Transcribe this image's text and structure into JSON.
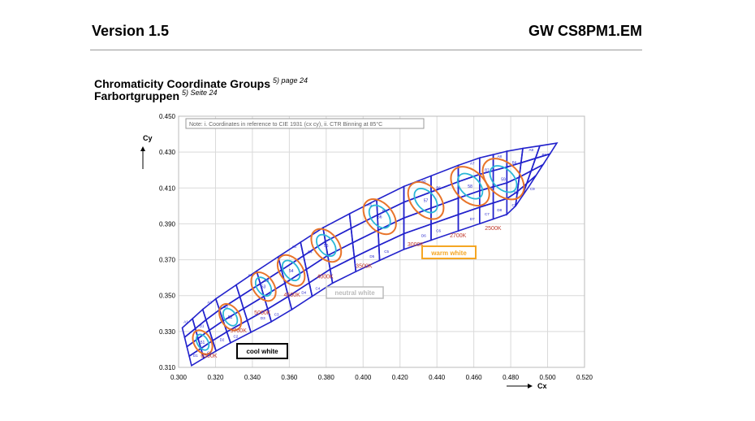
{
  "header": {
    "version": "Version 1.5",
    "part_number": "GW CS8PM1.EM"
  },
  "section": {
    "title_en": "Chromaticity Coordinate Groups",
    "ref_en": "5) page 24",
    "title_de": "Farbortgruppen",
    "ref_de": "5) Seite 24"
  },
  "colors": {
    "grid": "#d9d9d9",
    "bin_border": "#2222cc",
    "ellipse_orange": "#e8742a",
    "ellipse_cyan": "#2ab7d6",
    "cct_label": "#c0392b"
  },
  "chart_data": {
    "type": "scatter",
    "title": "",
    "xlabel": "Cx",
    "ylabel": "Cy",
    "xlim": [
      0.3,
      0.52
    ],
    "ylim": [
      0.31,
      0.45
    ],
    "x_ticks": [
      "0.300",
      "0.320",
      "0.340",
      "0.360",
      "0.380",
      "0.400",
      "0.420",
      "0.440",
      "0.460",
      "0.480",
      "0.500",
      "0.520"
    ],
    "y_ticks": [
      "0.310",
      "0.330",
      "0.350",
      "0.370",
      "0.390",
      "0.410",
      "0.430",
      "0.450"
    ],
    "grid": true,
    "note": "Note: i. Coordinates in reference to CIE 1931 (cx cy), ii. CTR Binning at 85°C",
    "groups": [
      {
        "name": "cool white",
        "position": "bottom-left"
      },
      {
        "name": "neutral white",
        "position": "center"
      },
      {
        "name": "warm white",
        "position": "right"
      }
    ],
    "cct_points": [
      {
        "label": "6500K",
        "x": 0.313,
        "y": 0.324
      },
      {
        "label": "5700K",
        "x": 0.328,
        "y": 0.338
      },
      {
        "label": "5000K",
        "x": 0.346,
        "y": 0.355
      },
      {
        "label": "4500K",
        "x": 0.361,
        "y": 0.364
      },
      {
        "label": "4000K",
        "x": 0.38,
        "y": 0.378
      },
      {
        "label": "3500K",
        "x": 0.409,
        "y": 0.394
      },
      {
        "label": "3000K",
        "x": 0.434,
        "y": 0.403
      },
      {
        "label": "2700K",
        "x": 0.458,
        "y": 0.411
      },
      {
        "label": "2500K",
        "x": 0.476,
        "y": 0.415
      }
    ],
    "cct_label_positions": [
      {
        "label": "6500K",
        "x": 0.312,
        "y": 0.3155
      },
      {
        "label": "5700K",
        "x": 0.328,
        "y": 0.3295
      },
      {
        "label": "5000K",
        "x": 0.341,
        "y": 0.3395
      },
      {
        "label": "4500K",
        "x": 0.357,
        "y": 0.3495
      },
      {
        "label": "4000K",
        "x": 0.375,
        "y": 0.3595
      },
      {
        "label": "3500K",
        "x": 0.396,
        "y": 0.3655
      },
      {
        "label": "3000K",
        "x": 0.424,
        "y": 0.3775
      },
      {
        "label": "2700K",
        "x": 0.447,
        "y": 0.3825
      },
      {
        "label": "2500K",
        "x": 0.466,
        "y": 0.3865
      }
    ],
    "bin_labels": [
      "A1",
      "B1",
      "C1",
      "D1",
      "A2",
      "B2",
      "C2",
      "D2",
      "A3",
      "B3",
      "C3",
      "D3",
      "A4",
      "B4",
      "C4",
      "D4",
      "A5",
      "B5",
      "C5",
      "D5",
      "A6",
      "B6",
      "C6",
      "D6",
      "A7",
      "B7",
      "C7",
      "D7",
      "A8",
      "B8",
      "C8",
      "D8",
      "A9",
      "B9",
      "C9",
      "D9"
    ],
    "ellipse_labels": [
      "51",
      "52",
      "53",
      "54",
      "55",
      "56",
      "57",
      "58",
      "59"
    ],
    "bin_outline": {
      "upper_x": [
        0.302,
        0.317,
        0.347,
        0.38,
        0.42,
        0.46,
        0.48,
        0.505
      ],
      "upper_y": [
        0.332,
        0.346,
        0.367,
        0.389,
        0.41,
        0.426,
        0.431,
        0.435
      ],
      "lower_x": [
        0.307,
        0.325,
        0.355,
        0.385,
        0.42,
        0.46,
        0.48,
        0.49
      ],
      "lower_y": [
        0.311,
        0.322,
        0.338,
        0.358,
        0.375,
        0.389,
        0.396,
        0.411
      ]
    }
  }
}
